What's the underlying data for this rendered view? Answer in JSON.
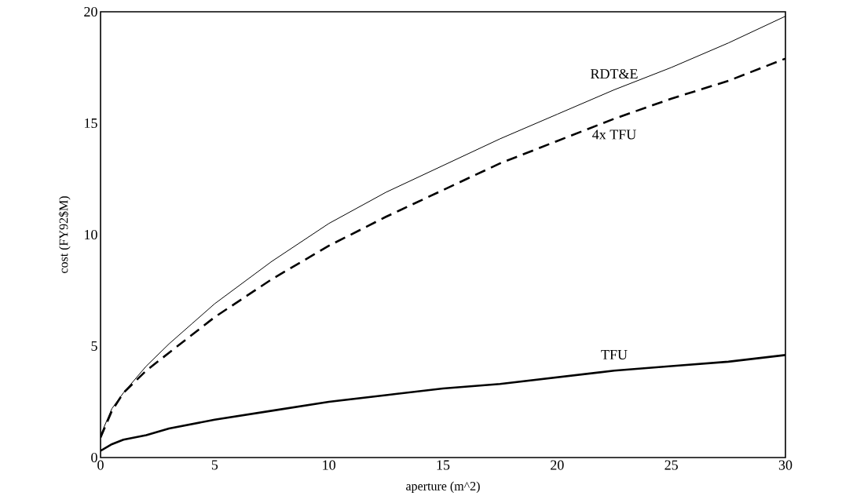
{
  "chart_data": {
    "type": "line",
    "xlabel": "aperture (m^2)",
    "ylabel": "cost  (FY92$M)",
    "xlim": [
      0,
      30
    ],
    "ylim": [
      0,
      20
    ],
    "xticks": [
      0,
      5,
      10,
      15,
      20,
      25,
      30
    ],
    "yticks": [
      0,
      5,
      10,
      15,
      20
    ],
    "grid": false,
    "marker": "none",
    "series": [
      {
        "name": "RDT&E",
        "color": "#000000",
        "line_style": "solid",
        "x": [
          0,
          0.5,
          1,
          2,
          3,
          4,
          5,
          7.5,
          10,
          12.5,
          15,
          17.5,
          20,
          22.5,
          25,
          27.5,
          30
        ],
        "values": [
          1.0,
          2.2,
          2.9,
          4.1,
          5.1,
          6.0,
          6.9,
          8.8,
          10.5,
          11.9,
          13.1,
          14.3,
          15.4,
          16.5,
          17.5,
          18.6,
          19.8
        ]
      },
      {
        "name": "4x TFU",
        "color": "#000000",
        "line_style": "dashed",
        "x": [
          0,
          0.5,
          1,
          1.5,
          2,
          3,
          4,
          5,
          7.5,
          10,
          12.5,
          15,
          17.5,
          20,
          22.5,
          25,
          27.5,
          30
        ],
        "values": [
          0.9,
          2.1,
          2.9,
          3.4,
          3.9,
          4.7,
          5.5,
          6.3,
          8.0,
          9.5,
          10.8,
          12.0,
          13.2,
          14.2,
          15.2,
          16.1,
          16.9,
          17.9
        ]
      },
      {
        "name": "TFU",
        "color": "#000000",
        "line_style": "solid",
        "x": [
          0,
          0.5,
          1,
          2,
          3,
          5,
          7.5,
          10,
          12.5,
          15,
          17.5,
          20,
          22.5,
          25,
          27.5,
          30
        ],
        "values": [
          0.3,
          0.6,
          0.8,
          1.0,
          1.3,
          1.7,
          2.1,
          2.5,
          2.8,
          3.1,
          3.3,
          3.6,
          3.9,
          4.1,
          4.3,
          4.6
        ]
      }
    ]
  }
}
